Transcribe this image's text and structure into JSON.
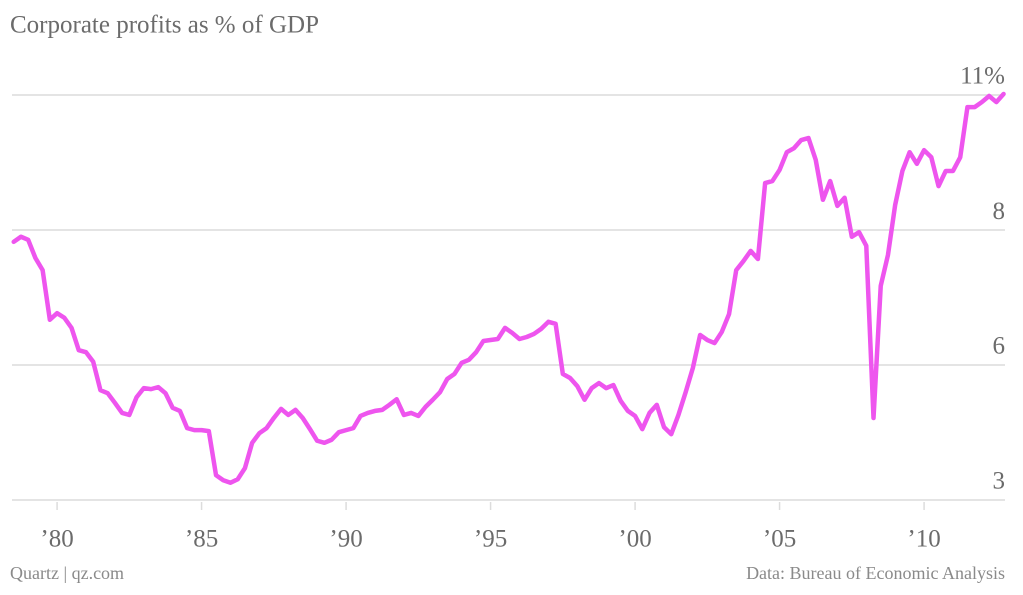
{
  "chart_data": {
    "type": "line",
    "title": "Corporate profits as % of GDP",
    "credit": "Quartz | qz.com",
    "source": "Data: Bureau of Economic Analysis",
    "color": "#ee55ee",
    "grid": true,
    "xlim": [
      1978.44,
      2012.8
    ],
    "ylim": [
      3,
      11
    ],
    "xticks": [
      {
        "value": 1980,
        "label": "’80"
      },
      {
        "value": 1985,
        "label": "’85"
      },
      {
        "value": 1990,
        "label": "’90"
      },
      {
        "value": 1995,
        "label": "’95"
      },
      {
        "value": 2000,
        "label": "’00"
      },
      {
        "value": 2005,
        "label": "’05"
      },
      {
        "value": 2010,
        "label": "’10"
      }
    ],
    "yticks": [
      3,
      {
        "value": 5.667,
        "label": "6"
      },
      {
        "value": 8.333,
        "label": "8"
      },
      {
        "value": 11,
        "label": "11%"
      }
    ],
    "x": [
      1978.5,
      1978.75,
      1979,
      1979.25,
      1979.5,
      1979.75,
      1980,
      1980.25,
      1980.5,
      1980.75,
      1981,
      1981.25,
      1981.5,
      1981.75,
      1982,
      1982.25,
      1982.5,
      1982.75,
      1983,
      1983.25,
      1983.5,
      1983.75,
      1984,
      1984.25,
      1984.5,
      1984.75,
      1985,
      1985.25,
      1985.5,
      1985.75,
      1986,
      1986.25,
      1986.5,
      1986.75,
      1987,
      1987.25,
      1987.5,
      1987.75,
      1988,
      1988.25,
      1988.5,
      1988.75,
      1989,
      1989.25,
      1989.5,
      1989.75,
      1990,
      1990.25,
      1990.5,
      1990.75,
      1991,
      1991.25,
      1991.5,
      1991.75,
      1992,
      1992.25,
      1992.5,
      1992.75,
      1993,
      1993.25,
      1993.5,
      1993.75,
      1994,
      1994.25,
      1994.5,
      1994.75,
      1995,
      1995.25,
      1995.5,
      1995.75,
      1996,
      1996.25,
      1996.5,
      1996.75,
      1997,
      1997.25,
      1997.5,
      1997.75,
      1998,
      1998.25,
      1998.5,
      1998.75,
      1999,
      1999.25,
      1999.5,
      1999.75,
      2000,
      2000.25,
      2000.5,
      2000.75,
      2001,
      2001.25,
      2001.5,
      2001.75,
      2002,
      2002.25,
      2002.5,
      2002.75,
      2003,
      2003.25,
      2003.5,
      2003.75,
      2004,
      2004.25,
      2004.5,
      2004.75,
      2005,
      2005.25,
      2005.5,
      2005.75,
      2006,
      2006.25,
      2006.5,
      2006.75,
      2007,
      2007.25,
      2007.5,
      2007.75,
      2008,
      2008.25,
      2008.5,
      2008.75,
      2009,
      2009.25,
      2009.5,
      2009.75,
      2010,
      2010.25,
      2010.5,
      2010.75,
      2011,
      2011.25,
      2011.5,
      2011.75,
      2012,
      2012.25,
      2012.5,
      2012.75
    ],
    "values": [
      8.1,
      8.2,
      8.14,
      7.78,
      7.54,
      6.56,
      6.69,
      6.6,
      6.4,
      5.96,
      5.92,
      5.73,
      5.17,
      5.11,
      4.92,
      4.72,
      4.68,
      5.03,
      5.21,
      5.19,
      5.23,
      5.11,
      4.82,
      4.76,
      4.42,
      4.38,
      4.38,
      4.36,
      3.49,
      3.39,
      3.34,
      3.41,
      3.63,
      4.13,
      4.32,
      4.42,
      4.62,
      4.8,
      4.68,
      4.78,
      4.62,
      4.4,
      4.17,
      4.13,
      4.19,
      4.34,
      4.38,
      4.42,
      4.66,
      4.72,
      4.76,
      4.78,
      4.88,
      4.99,
      4.68,
      4.72,
      4.66,
      4.84,
      4.98,
      5.13,
      5.39,
      5.49,
      5.71,
      5.77,
      5.92,
      6.14,
      6.16,
      6.18,
      6.4,
      6.3,
      6.18,
      6.22,
      6.28,
      6.38,
      6.52,
      6.48,
      5.49,
      5.41,
      5.25,
      4.98,
      5.21,
      5.31,
      5.21,
      5.27,
      4.96,
      4.76,
      4.66,
      4.4,
      4.72,
      4.88,
      4.44,
      4.3,
      4.68,
      5.13,
      5.61,
      6.26,
      6.16,
      6.1,
      6.32,
      6.67,
      7.54,
      7.72,
      7.92,
      7.76,
      9.26,
      9.3,
      9.52,
      9.87,
      9.95,
      10.11,
      10.15,
      9.72,
      8.93,
      9.3,
      8.81,
      8.97,
      8.2,
      8.29,
      8.02,
      4.62,
      7.23,
      7.84,
      8.83,
      9.5,
      9.87,
      9.64,
      9.91,
      9.77,
      9.2,
      9.5,
      9.5,
      9.77,
      10.76,
      10.76,
      10.86,
      10.98,
      10.86,
      11.02
    ]
  }
}
